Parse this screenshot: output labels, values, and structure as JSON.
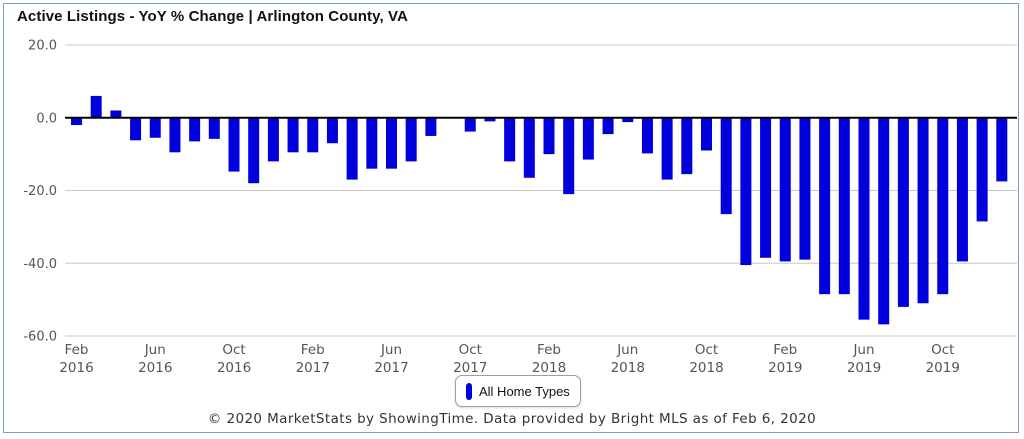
{
  "colors": {
    "bar": "#0000dd",
    "grid": "#c8c8c8",
    "zero_line": "#000000",
    "axis_text": "#555555"
  },
  "chart_data": {
    "type": "bar",
    "title": "Active Listings - YoY % Change | Arlington County, VA",
    "xlabel": "",
    "ylabel": "",
    "ylim": [
      -60,
      20
    ],
    "y_ticks": [
      "20.0",
      "0.0",
      "-20.0",
      "-40.0",
      "-60.0"
    ],
    "x_ticks": [
      {
        "index": 0,
        "month": "Feb",
        "year": "2016"
      },
      {
        "index": 4,
        "month": "Jun",
        "year": "2016"
      },
      {
        "index": 8,
        "month": "Oct",
        "year": "2016"
      },
      {
        "index": 12,
        "month": "Feb",
        "year": "2017"
      },
      {
        "index": 16,
        "month": "Jun",
        "year": "2017"
      },
      {
        "index": 20,
        "month": "Oct",
        "year": "2017"
      },
      {
        "index": 24,
        "month": "Feb",
        "year": "2018"
      },
      {
        "index": 28,
        "month": "Jun",
        "year": "2018"
      },
      {
        "index": 32,
        "month": "Oct",
        "year": "2018"
      },
      {
        "index": 36,
        "month": "Feb",
        "year": "2019"
      },
      {
        "index": 40,
        "month": "Jun",
        "year": "2019"
      },
      {
        "index": 44,
        "month": "Oct",
        "year": "2019"
      }
    ],
    "legend": "bottom-center",
    "series": [
      {
        "name": "All Home Types",
        "values": [
          -2,
          6,
          2,
          -6.2,
          -5.5,
          -9.5,
          -6.5,
          -5.8,
          -14.8,
          -18,
          -12,
          -9.5,
          -9.5,
          -7,
          -17,
          -14,
          -14,
          -12,
          -5,
          0,
          -3.8,
          -1,
          -12,
          -16.5,
          -10,
          -21,
          -11.5,
          -4.5,
          -1.2,
          -9.8,
          -17,
          -15.5,
          -9,
          -26.5,
          -40.5,
          -38.5,
          -39.5,
          -39,
          -48.5,
          -48.5,
          -55.5,
          -56.8,
          -52,
          -51,
          -48.5,
          -39.5,
          -28.5,
          -17.5
        ]
      }
    ]
  },
  "legend": {
    "label": "All Home Types"
  },
  "footer": "© 2020 MarketStats by ShowingTime. Data provided by Bright MLS as of Feb 6, 2020"
}
